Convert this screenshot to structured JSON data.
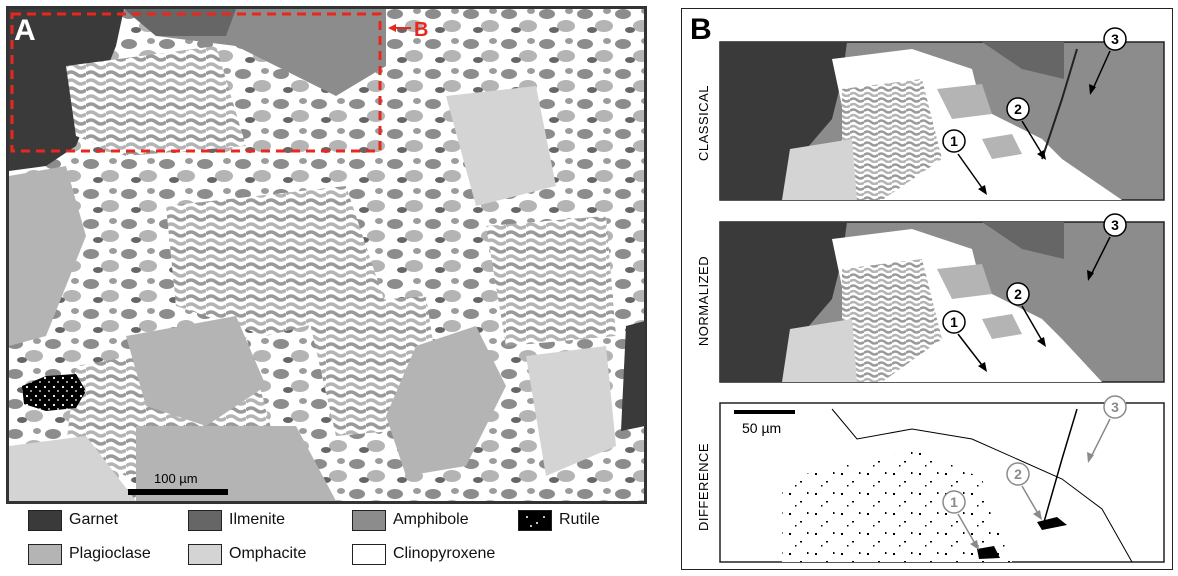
{
  "panel_a": {
    "label": "A",
    "callout": "B",
    "scale_bar": "100 µm"
  },
  "panel_b": {
    "label": "B",
    "rows": [
      {
        "side_label": "CLASSICAL"
      },
      {
        "side_label": "NORMALIZED"
      },
      {
        "side_label": "DIFFERENCE",
        "scale_bar": "50 µm"
      }
    ],
    "markers": [
      "1",
      "2",
      "3"
    ]
  },
  "legend": [
    {
      "label": "Garnet",
      "color": "#3a3a3a"
    },
    {
      "label": "Ilmenite",
      "color": "#666666"
    },
    {
      "label": "Amphibole",
      "color": "#8c8c8c"
    },
    {
      "label": "Rutile",
      "color": "#000000",
      "dotted": true
    },
    {
      "label": "Plagioclase",
      "color": "#b4b4b4"
    },
    {
      "label": "Omphacite",
      "color": "#d4d4d4"
    },
    {
      "label": "Clinopyroxene",
      "color": "#ffffff"
    }
  ],
  "colors": {
    "garnet": "#3a3a3a",
    "ilmenite": "#666666",
    "amphibole": "#8c8c8c",
    "plagioclase": "#b4b4b4",
    "omphacite": "#d4d4d4",
    "clinopyroxene": "#ffffff",
    "callout": "#e8281e"
  }
}
